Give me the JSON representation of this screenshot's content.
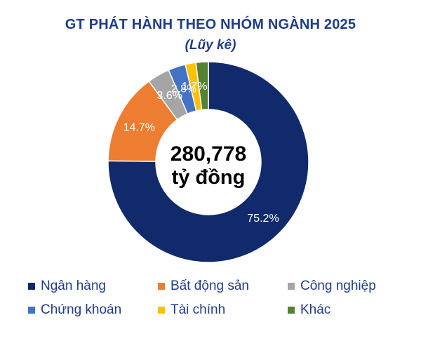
{
  "title": "GT PHÁT HÀNH THEO NHÓM NGÀNH 2025",
  "subtitle": "(Lũy kê)",
  "center": {
    "value": "280,778",
    "unit": "tỷ đồng"
  },
  "colors": {
    "title": "#1f3c88",
    "legend_text": "#1f3c88",
    "label_white": "#ffffff"
  },
  "chart_data": {
    "type": "pie",
    "donut": true,
    "legend_position": "bottom",
    "categories": [
      "Ngân hàng",
      "Bất động sản",
      "Công nghiệp",
      "Chứng khoán",
      "Tài chính",
      "Khác"
    ],
    "values": [
      75.2,
      14.7,
      3.6,
      2.8,
      1.7,
      2.0
    ],
    "labels": [
      "75.2%",
      "14.7%",
      "3.6%",
      "2.8%",
      "1.7%",
      ""
    ],
    "colors": [
      "#102a6b",
      "#ed7d31",
      "#a5a5a5",
      "#4472c4",
      "#ffc000",
      "#548235"
    ]
  }
}
